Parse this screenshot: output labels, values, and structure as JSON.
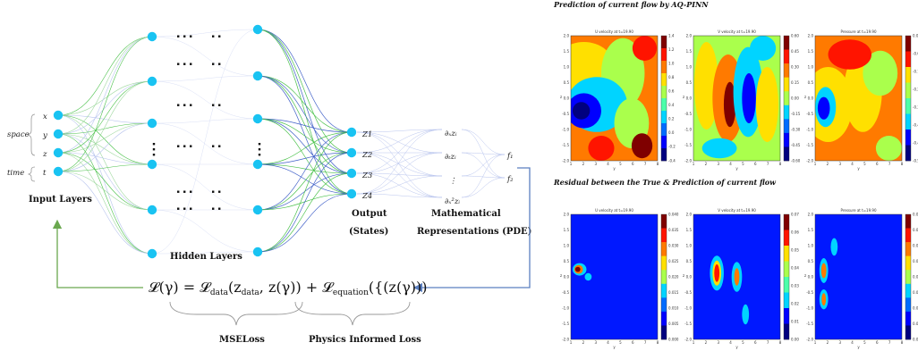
{
  "colors": {
    "node": "#19c3f2",
    "edge_green": "#4cc24c",
    "edge_blue": "#4060c8",
    "edge_light": "#b8c4ee",
    "arrow_green": "#6aa84f",
    "arrow_blue": "#5b7fc0",
    "brace": "#999999"
  },
  "network": {
    "space_label": "space",
    "time_label": "time",
    "input_vars": [
      "x",
      "y",
      "z",
      "t"
    ],
    "input_layers_label": "Input Layers",
    "hidden_layers_label": "Hidden Layers",
    "outputs": [
      "Z1",
      "Z2",
      "Z3",
      "Z4"
    ],
    "output_label_1": "Output",
    "output_label_2": "(States)",
    "pde_terms": [
      "∂ₓzᵢ",
      "∂ₜzᵢ",
      "⋮",
      "∂ₓ²zᵢ"
    ],
    "residuals": [
      "f₁",
      "f₂"
    ],
    "math_label_1": "Mathematical",
    "math_label_2": "Representations (PDE)"
  },
  "loss": {
    "lhs": "𝓛(γ) = ",
    "data_term": "𝓛",
    "data_sub": "data",
    "data_args": "(z",
    "data_args_sub": "data",
    "data_args_rest": ", z(γ)) + ",
    "eq_term": "𝓛",
    "eq_sub": "equation",
    "eq_args": "({(z(γ)))",
    "mse_label": "MSELoss",
    "physics_label": "Physics Informed Loss"
  },
  "right": {
    "top_title": "Prediction of current flow by AQ-PINN",
    "bottom_title": "Residual between the True & Prediction of current flow",
    "top_panels": [
      {
        "title": "U velocity at t=19.90",
        "cbar": [
          "1.4",
          "1.2",
          "1.0",
          "0.8",
          "0.6",
          "0.4",
          "0.2",
          "0.0",
          "-0.2",
          "-0.4"
        ]
      },
      {
        "title": "V velocity at t=19.90",
        "cbar": [
          "0.60",
          "0.45",
          "0.30",
          "0.15",
          "0.00",
          "-0.15",
          "-0.30",
          "-0.45",
          "-0.60"
        ]
      },
      {
        "title": "Pressure at t=19.90",
        "cbar": [
          "0.00",
          "-0.08",
          "-0.16",
          "-0.24",
          "-0.32",
          "-0.40",
          "-0.48",
          "-0.56"
        ]
      }
    ],
    "bottom_panels": [
      {
        "title": "U velocity at t=19.90",
        "cbar": [
          "0.040",
          "0.035",
          "0.030",
          "0.025",
          "0.020",
          "0.015",
          "0.010",
          "0.005",
          "0.000"
        ]
      },
      {
        "title": "V velocity at t=19.90",
        "cbar": [
          "0.07",
          "0.06",
          "0.05",
          "0.04",
          "0.03",
          "0.02",
          "0.01",
          "0.00"
        ]
      },
      {
        "title": "Pressure at t=19.90",
        "cbar": [
          "0.016",
          "0.014",
          "0.012",
          "0.010",
          "0.008",
          "0.006",
          "0.004",
          "0.002",
          "0.000"
        ]
      }
    ],
    "y_ticks": [
      "2.0",
      "1.5",
      "1.0",
      "0.5",
      "0.0",
      "-0.5",
      "-1.0",
      "-1.5",
      "-2.0"
    ],
    "x_ticks": [
      "1",
      "2",
      "3",
      "4",
      "5",
      "6",
      "7",
      "8"
    ],
    "x_label": "y",
    "y_label": "z"
  }
}
